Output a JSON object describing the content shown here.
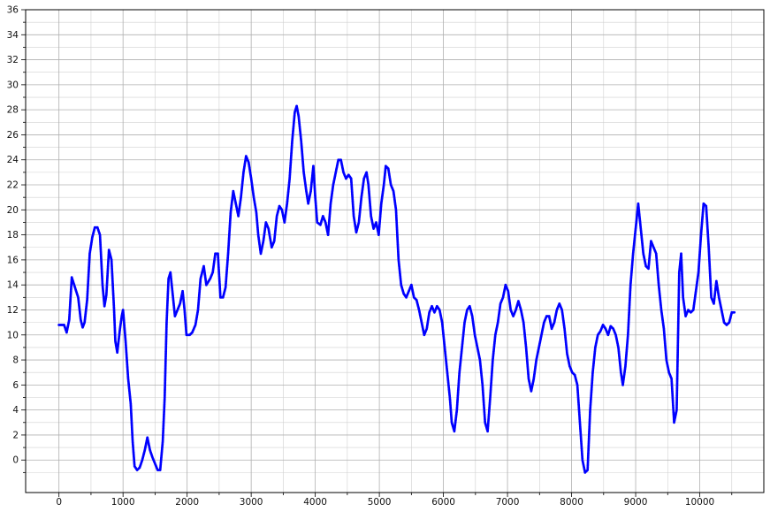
{
  "chart_data": {
    "type": "scatter",
    "title": "",
    "xlabel": "",
    "ylabel": "",
    "xlim": [
      -520,
      11000
    ],
    "ylim": [
      -2.6,
      36
    ],
    "x_ticks": [
      0,
      1000,
      2000,
      3000,
      4000,
      5000,
      6000,
      7000,
      8000,
      9000,
      10000
    ],
    "y_ticks": [
      0,
      2,
      4,
      6,
      8,
      10,
      12,
      14,
      16,
      18,
      20,
      22,
      24,
      26,
      28,
      30,
      32,
      34,
      36
    ],
    "grid": true,
    "marker_color": "#0000ff",
    "series": [
      {
        "profile": [
          [
            0,
            10.8
          ],
          [
            80,
            10.8
          ],
          [
            120,
            10.2
          ],
          [
            160,
            11.2
          ],
          [
            200,
            14.6
          ],
          [
            250,
            13.8
          ],
          [
            300,
            13.0
          ],
          [
            340,
            11.2
          ],
          [
            370,
            10.6
          ],
          [
            400,
            11.0
          ],
          [
            440,
            12.8
          ],
          [
            480,
            16.5
          ],
          [
            520,
            17.8
          ],
          [
            560,
            18.6
          ],
          [
            600,
            18.6
          ],
          [
            640,
            18.0
          ],
          [
            680,
            14.0
          ],
          [
            710,
            12.3
          ],
          [
            740,
            13.2
          ],
          [
            780,
            16.8
          ],
          [
            820,
            16.0
          ],
          [
            860,
            12.0
          ],
          [
            880,
            9.5
          ],
          [
            910,
            8.6
          ],
          [
            950,
            10.4
          ],
          [
            980,
            11.5
          ],
          [
            1000,
            12.0
          ],
          [
            1040,
            9.5
          ],
          [
            1080,
            6.5
          ],
          [
            1120,
            4.5
          ],
          [
            1150,
            1.5
          ],
          [
            1180,
            -0.5
          ],
          [
            1220,
            -0.8
          ],
          [
            1260,
            -0.6
          ],
          [
            1300,
            0.0
          ],
          [
            1340,
            0.8
          ],
          [
            1380,
            1.8
          ],
          [
            1420,
            0.8
          ],
          [
            1460,
            0.2
          ],
          [
            1500,
            -0.3
          ],
          [
            1540,
            -0.8
          ],
          [
            1580,
            -0.8
          ],
          [
            1620,
            1.5
          ],
          [
            1650,
            5.0
          ],
          [
            1680,
            11.0
          ],
          [
            1710,
            14.5
          ],
          [
            1740,
            15.0
          ],
          [
            1780,
            13.0
          ],
          [
            1810,
            11.5
          ],
          [
            1850,
            12.0
          ],
          [
            1890,
            12.5
          ],
          [
            1930,
            13.5
          ],
          [
            1960,
            12.0
          ],
          [
            1990,
            10.0
          ],
          [
            2040,
            10.0
          ],
          [
            2080,
            10.2
          ],
          [
            2130,
            10.8
          ],
          [
            2170,
            12.0
          ],
          [
            2210,
            14.5
          ],
          [
            2260,
            15.5
          ],
          [
            2300,
            14.0
          ],
          [
            2360,
            14.5
          ],
          [
            2400,
            15.0
          ],
          [
            2440,
            16.5
          ],
          [
            2480,
            16.5
          ],
          [
            2520,
            13.0
          ],
          [
            2560,
            13.0
          ],
          [
            2600,
            13.8
          ],
          [
            2640,
            16.5
          ],
          [
            2680,
            19.8
          ],
          [
            2720,
            21.5
          ],
          [
            2760,
            20.5
          ],
          [
            2800,
            19.5
          ],
          [
            2840,
            21.0
          ],
          [
            2880,
            23.0
          ],
          [
            2920,
            24.3
          ],
          [
            2960,
            23.8
          ],
          [
            3000,
            22.5
          ],
          [
            3040,
            21.0
          ],
          [
            3080,
            19.8
          ],
          [
            3110,
            18.0
          ],
          [
            3150,
            16.5
          ],
          [
            3190,
            17.5
          ],
          [
            3230,
            19.0
          ],
          [
            3270,
            18.5
          ],
          [
            3320,
            17.0
          ],
          [
            3360,
            17.5
          ],
          [
            3400,
            19.5
          ],
          [
            3440,
            20.3
          ],
          [
            3480,
            20.0
          ],
          [
            3520,
            19.0
          ],
          [
            3560,
            20.5
          ],
          [
            3600,
            22.5
          ],
          [
            3640,
            25.5
          ],
          [
            3680,
            27.8
          ],
          [
            3710,
            28.3
          ],
          [
            3740,
            27.5
          ],
          [
            3780,
            25.5
          ],
          [
            3820,
            23.0
          ],
          [
            3860,
            21.5
          ],
          [
            3890,
            20.5
          ],
          [
            3930,
            21.5
          ],
          [
            3970,
            23.5
          ],
          [
            4000,
            21.0
          ],
          [
            4030,
            19.0
          ],
          [
            4080,
            18.8
          ],
          [
            4120,
            19.5
          ],
          [
            4160,
            19.0
          ],
          [
            4200,
            18.0
          ],
          [
            4240,
            20.5
          ],
          [
            4280,
            22.0
          ],
          [
            4320,
            23.0
          ],
          [
            4360,
            24.0
          ],
          [
            4400,
            24.0
          ],
          [
            4440,
            23.0
          ],
          [
            4480,
            22.5
          ],
          [
            4520,
            22.8
          ],
          [
            4560,
            22.5
          ],
          [
            4600,
            19.5
          ],
          [
            4640,
            18.2
          ],
          [
            4680,
            19.0
          ],
          [
            4720,
            21.0
          ],
          [
            4760,
            22.5
          ],
          [
            4800,
            23.0
          ],
          [
            4830,
            22.0
          ],
          [
            4870,
            19.5
          ],
          [
            4910,
            18.5
          ],
          [
            4950,
            19.0
          ],
          [
            4990,
            18.0
          ],
          [
            5030,
            20.5
          ],
          [
            5070,
            22.0
          ],
          [
            5100,
            23.5
          ],
          [
            5140,
            23.3
          ],
          [
            5180,
            22.0
          ],
          [
            5220,
            21.5
          ],
          [
            5260,
            20.0
          ],
          [
            5300,
            16.0
          ],
          [
            5340,
            14.0
          ],
          [
            5380,
            13.3
          ],
          [
            5420,
            13.0
          ],
          [
            5460,
            13.5
          ],
          [
            5500,
            14.0
          ],
          [
            5540,
            13.0
          ],
          [
            5580,
            12.8
          ],
          [
            5620,
            12.0
          ],
          [
            5660,
            11.0
          ],
          [
            5700,
            10.0
          ],
          [
            5740,
            10.5
          ],
          [
            5780,
            11.8
          ],
          [
            5820,
            12.3
          ],
          [
            5860,
            11.8
          ],
          [
            5900,
            12.3
          ],
          [
            5940,
            12.0
          ],
          [
            5980,
            11.0
          ],
          [
            6020,
            9.0
          ],
          [
            6060,
            7.0
          ],
          [
            6100,
            5.0
          ],
          [
            6130,
            3.0
          ],
          [
            6170,
            2.3
          ],
          [
            6210,
            4.0
          ],
          [
            6250,
            7.0
          ],
          [
            6290,
            9.0
          ],
          [
            6330,
            11.0
          ],
          [
            6370,
            12.0
          ],
          [
            6410,
            12.3
          ],
          [
            6450,
            11.5
          ],
          [
            6490,
            10.0
          ],
          [
            6530,
            9.0
          ],
          [
            6570,
            8.0
          ],
          [
            6610,
            6.0
          ],
          [
            6650,
            3.0
          ],
          [
            6690,
            2.3
          ],
          [
            6730,
            5.0
          ],
          [
            6770,
            8.0
          ],
          [
            6810,
            10.0
          ],
          [
            6850,
            11.0
          ],
          [
            6890,
            12.5
          ],
          [
            6930,
            13.0
          ],
          [
            6970,
            14.0
          ],
          [
            7010,
            13.5
          ],
          [
            7050,
            12.0
          ],
          [
            7090,
            11.5
          ],
          [
            7130,
            12.0
          ],
          [
            7170,
            12.7
          ],
          [
            7210,
            12.0
          ],
          [
            7250,
            11.0
          ],
          [
            7290,
            9.0
          ],
          [
            7330,
            6.5
          ],
          [
            7370,
            5.5
          ],
          [
            7410,
            6.5
          ],
          [
            7450,
            8.0
          ],
          [
            7490,
            9.0
          ],
          [
            7530,
            10.0
          ],
          [
            7570,
            11.0
          ],
          [
            7610,
            11.5
          ],
          [
            7650,
            11.5
          ],
          [
            7690,
            10.5
          ],
          [
            7730,
            11.0
          ],
          [
            7770,
            12.0
          ],
          [
            7810,
            12.5
          ],
          [
            7850,
            12.0
          ],
          [
            7890,
            10.5
          ],
          [
            7930,
            8.5
          ],
          [
            7970,
            7.5
          ],
          [
            8010,
            7.0
          ],
          [
            8050,
            6.8
          ],
          [
            8090,
            6.0
          ],
          [
            8130,
            3.0
          ],
          [
            8170,
            0.0
          ],
          [
            8210,
            -1.0
          ],
          [
            8250,
            -0.8
          ],
          [
            8290,
            4.0
          ],
          [
            8330,
            7.0
          ],
          [
            8370,
            9.0
          ],
          [
            8410,
            10.0
          ],
          [
            8450,
            10.3
          ],
          [
            8490,
            10.8
          ],
          [
            8530,
            10.5
          ],
          [
            8570,
            10.0
          ],
          [
            8610,
            10.7
          ],
          [
            8650,
            10.5
          ],
          [
            8690,
            10.0
          ],
          [
            8730,
            9.0
          ],
          [
            8770,
            7.0
          ],
          [
            8800,
            6.0
          ],
          [
            8840,
            7.5
          ],
          [
            8880,
            10.0
          ],
          [
            8920,
            14.0
          ],
          [
            8960,
            16.5
          ],
          [
            9000,
            18.5
          ],
          [
            9040,
            20.5
          ],
          [
            9080,
            18.5
          ],
          [
            9120,
            16.5
          ],
          [
            9160,
            15.5
          ],
          [
            9200,
            15.3
          ],
          [
            9240,
            17.5
          ],
          [
            9280,
            17.0
          ],
          [
            9320,
            16.5
          ],
          [
            9360,
            14.0
          ],
          [
            9400,
            12.0
          ],
          [
            9440,
            10.5
          ],
          [
            9480,
            8.0
          ],
          [
            9520,
            7.0
          ],
          [
            9560,
            6.5
          ],
          [
            9600,
            3.0
          ],
          [
            9640,
            4.0
          ],
          [
            9680,
            15.0
          ],
          [
            9710,
            16.5
          ],
          [
            9740,
            13.0
          ],
          [
            9780,
            11.5
          ],
          [
            9820,
            12.0
          ],
          [
            9860,
            11.8
          ],
          [
            9900,
            12.0
          ],
          [
            9940,
            13.5
          ],
          [
            9980,
            15.0
          ],
          [
            10020,
            18.0
          ],
          [
            10060,
            20.5
          ],
          [
            10100,
            20.3
          ],
          [
            10140,
            17.0
          ],
          [
            10180,
            13.0
          ],
          [
            10220,
            12.5
          ],
          [
            10260,
            14.3
          ],
          [
            10300,
            13.0
          ],
          [
            10340,
            12.0
          ],
          [
            10380,
            11.0
          ],
          [
            10420,
            10.8
          ],
          [
            10460,
            11.0
          ],
          [
            10500,
            11.8
          ],
          [
            10540,
            11.8
          ]
        ]
      }
    ]
  }
}
